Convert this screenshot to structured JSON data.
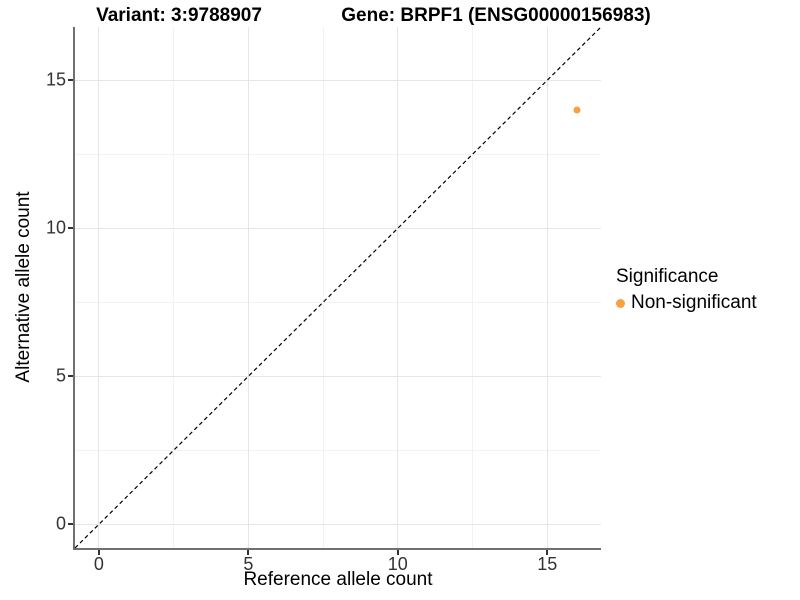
{
  "chart_data": {
    "type": "scatter",
    "title_left": "Variant: 3:9788907",
    "title_right": "Gene: BRPF1 (ENSG00000156983)",
    "xlabel": "Reference allele count",
    "ylabel": "Alternative allele count",
    "xlim": [
      -0.8,
      16.8
    ],
    "ylim": [
      -0.8,
      16.8
    ],
    "x_ticks": [
      0,
      5,
      10,
      15
    ],
    "y_ticks": [
      0,
      5,
      10,
      15
    ],
    "x_minor_ticks": [
      2.5,
      7.5,
      12.5
    ],
    "y_minor_ticks": [
      2.5,
      7.5,
      12.5
    ],
    "grid": true,
    "identity_line": {
      "style": "dashed",
      "color": "#000000",
      "from": [
        -0.8,
        -0.8
      ],
      "to": [
        16.8,
        16.8
      ]
    },
    "series": [
      {
        "name": "Non-significant",
        "color": "#F9A03F",
        "points": [
          {
            "x": 16,
            "y": 14
          }
        ]
      }
    ],
    "legend": {
      "title": "Significance",
      "position": "right",
      "items": [
        {
          "label": "Non-significant",
          "color": "#F9A03F"
        }
      ]
    }
  },
  "colors": {
    "point": "#F9A03F",
    "axis_line": "#707070",
    "tick_mark": "#333333",
    "tick_label": "#333333",
    "grid_major": "#E6E6E6",
    "grid_minor": "#F2F2F2",
    "background": "#FFFFFF"
  }
}
